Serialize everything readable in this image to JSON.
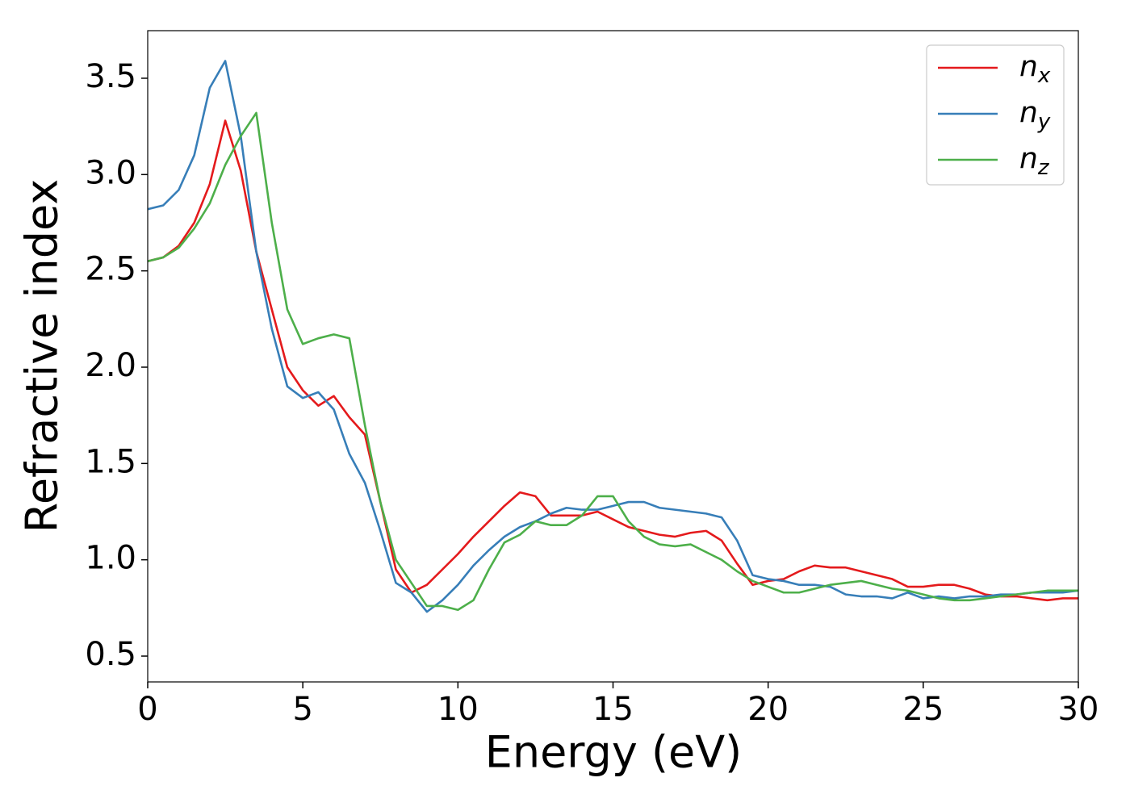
{
  "chart_data": {
    "type": "line",
    "xlabel": "Energy (eV)",
    "ylabel": "Refractive index",
    "x": [
      0,
      0.5,
      1,
      1.5,
      2,
      2.5,
      3,
      3.5,
      4,
      4.5,
      5,
      5.5,
      6,
      6.5,
      7,
      7.5,
      8,
      8.5,
      9,
      9.5,
      10,
      10.5,
      11,
      11.5,
      12,
      12.5,
      13,
      13.5,
      14,
      14.5,
      15,
      15.5,
      16,
      16.5,
      17,
      17.5,
      18,
      18.5,
      19,
      19.5,
      20,
      20.5,
      21,
      21.5,
      22,
      22.5,
      23,
      23.5,
      24,
      24.5,
      25,
      25.5,
      26,
      26.5,
      27,
      27.5,
      28,
      28.5,
      29,
      29.5,
      30
    ],
    "series": [
      {
        "name": "nx",
        "color": "#e41a1c",
        "values": [
          2.55,
          2.57,
          2.63,
          2.75,
          2.95,
          3.28,
          3.02,
          2.6,
          2.3,
          2.0,
          1.88,
          1.8,
          1.85,
          1.74,
          1.65,
          1.3,
          0.95,
          0.83,
          0.87,
          0.95,
          1.03,
          1.12,
          1.2,
          1.28,
          1.35,
          1.33,
          1.23,
          1.23,
          1.23,
          1.25,
          1.21,
          1.17,
          1.15,
          1.13,
          1.12,
          1.14,
          1.15,
          1.1,
          0.98,
          0.87,
          0.89,
          0.9,
          0.94,
          0.97,
          0.96,
          0.96,
          0.94,
          0.92,
          0.9,
          0.86,
          0.86,
          0.87,
          0.87,
          0.85,
          0.82,
          0.81,
          0.81,
          0.8,
          0.79,
          0.8,
          0.8
        ]
      },
      {
        "name": "ny",
        "color": "#377eb8",
        "values": [
          2.82,
          2.84,
          2.92,
          3.1,
          3.45,
          3.59,
          3.2,
          2.6,
          2.2,
          1.9,
          1.84,
          1.87,
          1.78,
          1.55,
          1.4,
          1.15,
          0.88,
          0.83,
          0.73,
          0.79,
          0.87,
          0.97,
          1.05,
          1.12,
          1.17,
          1.2,
          1.24,
          1.27,
          1.26,
          1.26,
          1.28,
          1.3,
          1.3,
          1.27,
          1.26,
          1.25,
          1.24,
          1.22,
          1.1,
          0.92,
          0.9,
          0.89,
          0.87,
          0.87,
          0.86,
          0.82,
          0.81,
          0.81,
          0.8,
          0.83,
          0.8,
          0.81,
          0.8,
          0.81,
          0.81,
          0.82,
          0.82,
          0.83,
          0.83,
          0.83,
          0.84
        ]
      },
      {
        "name": "nz",
        "color": "#4daf4a",
        "values": [
          2.55,
          2.57,
          2.62,
          2.72,
          2.85,
          3.05,
          3.2,
          3.32,
          2.75,
          2.3,
          2.12,
          2.15,
          2.17,
          2.15,
          1.7,
          1.3,
          1.0,
          0.88,
          0.76,
          0.76,
          0.74,
          0.79,
          0.95,
          1.09,
          1.13,
          1.2,
          1.18,
          1.18,
          1.23,
          1.33,
          1.33,
          1.2,
          1.12,
          1.08,
          1.07,
          1.08,
          1.04,
          1.0,
          0.94,
          0.89,
          0.86,
          0.83,
          0.83,
          0.85,
          0.87,
          0.88,
          0.89,
          0.87,
          0.85,
          0.84,
          0.82,
          0.8,
          0.79,
          0.79,
          0.8,
          0.81,
          0.82,
          0.83,
          0.84,
          0.84,
          0.84
        ]
      }
    ],
    "xlim": [
      0,
      30
    ],
    "xticks": [
      0,
      5,
      10,
      15,
      20,
      25,
      30
    ],
    "ylim": [
      0.366,
      3.747
    ],
    "yticks": [
      0.5,
      {
        "value": 1,
        "label": "1.0"
      },
      1.5,
      {
        "value": 2,
        "label": "2.0"
      },
      2.5,
      {
        "value": 3,
        "label": "3.0"
      },
      3.5
    ],
    "legend": "upper right"
  }
}
